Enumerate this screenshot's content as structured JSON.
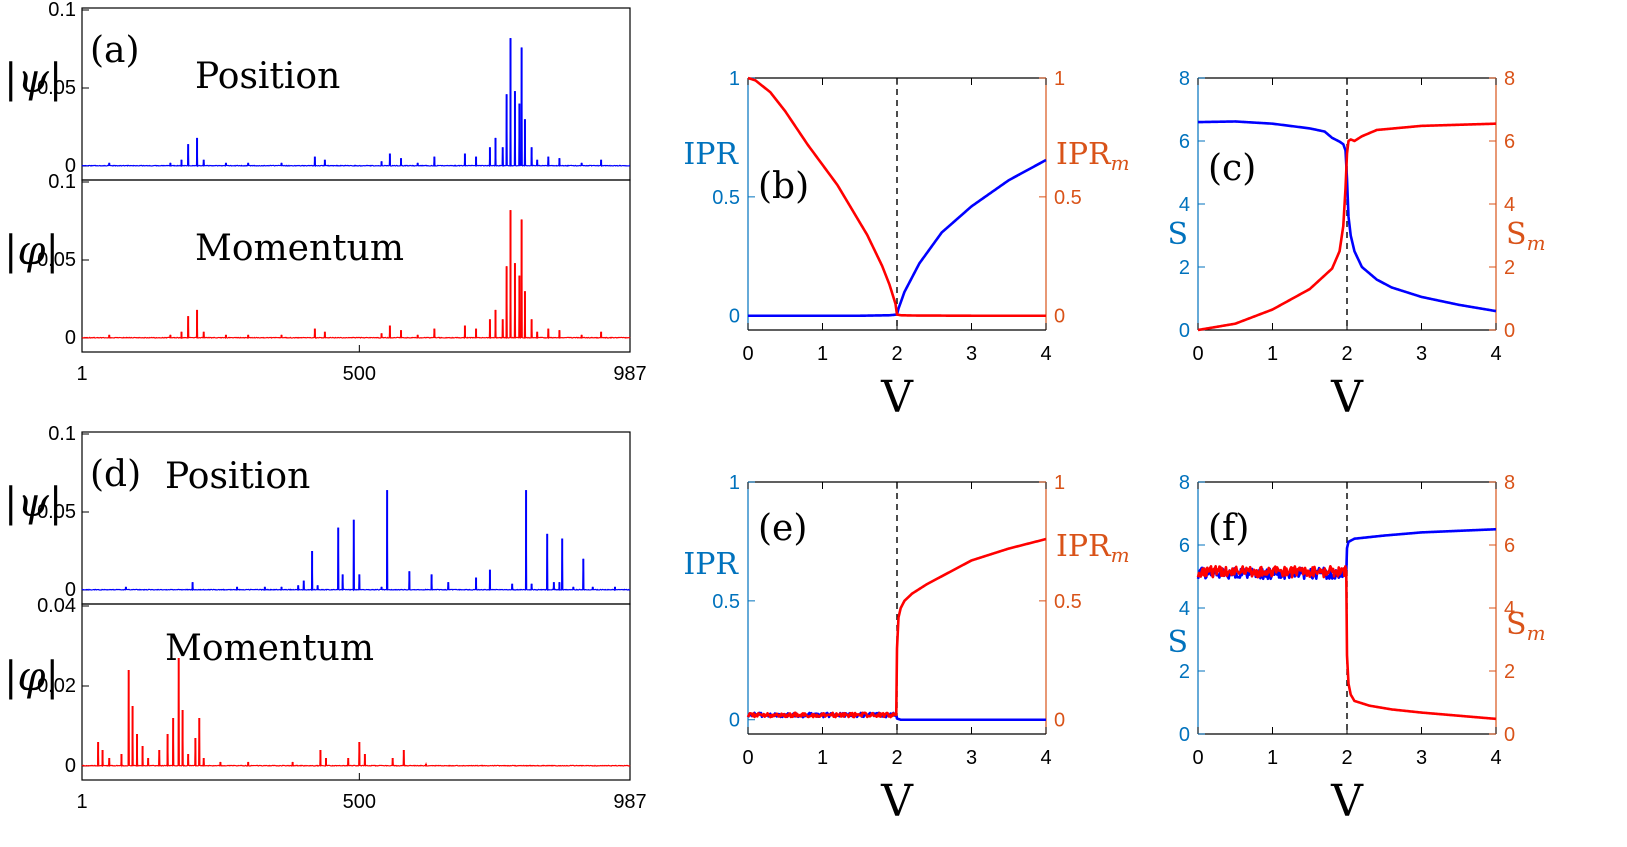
{
  "colors": {
    "blue": "#0000ff",
    "red": "#ff0000",
    "axis_blue": "#0072bd",
    "axis_orange": "#d95319",
    "black": "#000000"
  },
  "panels": {
    "a": {
      "label": "(a)",
      "top_title": "Position",
      "bottom_title": "Momentum",
      "top_ylabel": "|ψ|",
      "bottom_ylabel": "|φ|",
      "top_yticks": [
        "0",
        "0.05",
        "0.1"
      ],
      "bottom_yticks": [
        "0",
        "0.05",
        "0.1"
      ],
      "xticks": [
        "1",
        "500",
        "987"
      ]
    },
    "d": {
      "label": "(d)",
      "top_title": "Position",
      "bottom_title": "Momentum",
      "top_ylabel": "|ψ|",
      "bottom_ylabel": "|φ|",
      "top_yticks": [
        "0",
        "0.05",
        "0.1"
      ],
      "bottom_yticks": [
        "0",
        "0.02",
        "0.04"
      ],
      "xticks": [
        "1",
        "500",
        "987"
      ]
    },
    "b": {
      "label": "(b)",
      "left_label": "IPR",
      "right_label": "IPR",
      "right_sub": "m",
      "xlabel": "V",
      "xticks": [
        "0",
        "1",
        "2",
        "3",
        "4"
      ],
      "left_ticks": [
        "0",
        "0.5",
        "1"
      ],
      "right_ticks": [
        "0",
        "0.5",
        "1"
      ]
    },
    "c": {
      "label": "(c)",
      "left_label": "S",
      "right_label": "S",
      "right_sub": "m",
      "xlabel": "V",
      "xticks": [
        "0",
        "1",
        "2",
        "3",
        "4"
      ],
      "left_ticks": [
        "0",
        "2",
        "4",
        "6",
        "8"
      ],
      "right_ticks": [
        "0",
        "2",
        "4",
        "6",
        "8"
      ]
    },
    "e": {
      "label": "(e)",
      "left_label": "IPR",
      "right_label": "IPR",
      "right_sub": "m",
      "xlabel": "V",
      "xticks": [
        "0",
        "1",
        "2",
        "3",
        "4"
      ],
      "left_ticks": [
        "0",
        "0.5",
        "1"
      ],
      "right_ticks": [
        "0",
        "0.5",
        "1"
      ]
    },
    "f": {
      "label": "(f)",
      "left_label": "S",
      "right_label": "S",
      "right_sub": "m",
      "xlabel": "V",
      "xticks": [
        "0",
        "1",
        "2",
        "3",
        "4"
      ],
      "left_ticks": [
        "0",
        "2",
        "4",
        "6",
        "8"
      ],
      "right_ticks": [
        "0",
        "2",
        "4",
        "6",
        "8"
      ]
    }
  },
  "chart_data": [
    {
      "id": "a",
      "type": "line",
      "xlim": [
        1,
        987
      ],
      "series": [
        {
          "panel": "top",
          "ylim": [
            0,
            0.1
          ],
          "color": "#0000ff",
          "peaks": [
            [
              50,
              0.002
            ],
            [
              160,
              0.002
            ],
            [
              180,
              0.004
            ],
            [
              192,
              0.014
            ],
            [
              208,
              0.018
            ],
            [
              220,
              0.004
            ],
            [
              260,
              0.002
            ],
            [
              300,
              0.002
            ],
            [
              360,
              0.002
            ],
            [
              420,
              0.006
            ],
            [
              438,
              0.004
            ],
            [
              540,
              0.003
            ],
            [
              555,
              0.008
            ],
            [
              575,
              0.005
            ],
            [
              605,
              0.002
            ],
            [
              635,
              0.006
            ],
            [
              690,
              0.008
            ],
            [
              710,
              0.006
            ],
            [
              735,
              0.012
            ],
            [
              745,
              0.018
            ],
            [
              758,
              0.012
            ],
            [
              765,
              0.046
            ],
            [
              772,
              0.082
            ],
            [
              780,
              0.048
            ],
            [
              788,
              0.04
            ],
            [
              792,
              0.076
            ],
            [
              798,
              0.03
            ],
            [
              810,
              0.012
            ],
            [
              820,
              0.004
            ],
            [
              840,
              0.006
            ],
            [
              860,
              0.005
            ],
            [
              900,
              0.002
            ],
            [
              935,
              0.004
            ]
          ]
        },
        {
          "panel": "bottom",
          "ylim": [
            0,
            0.1
          ],
          "color": "#ff0000",
          "peaks": [
            [
              50,
              0.002
            ],
            [
              160,
              0.002
            ],
            [
              180,
              0.004
            ],
            [
              192,
              0.014
            ],
            [
              208,
              0.018
            ],
            [
              220,
              0.004
            ],
            [
              260,
              0.002
            ],
            [
              300,
              0.002
            ],
            [
              360,
              0.002
            ],
            [
              420,
              0.006
            ],
            [
              438,
              0.004
            ],
            [
              540,
              0.003
            ],
            [
              555,
              0.008
            ],
            [
              575,
              0.005
            ],
            [
              605,
              0.002
            ],
            [
              635,
              0.006
            ],
            [
              690,
              0.008
            ],
            [
              710,
              0.006
            ],
            [
              735,
              0.012
            ],
            [
              745,
              0.018
            ],
            [
              758,
              0.012
            ],
            [
              765,
              0.046
            ],
            [
              772,
              0.082
            ],
            [
              780,
              0.048
            ],
            [
              788,
              0.04
            ],
            [
              792,
              0.076
            ],
            [
              798,
              0.03
            ],
            [
              810,
              0.012
            ],
            [
              820,
              0.004
            ],
            [
              840,
              0.006
            ],
            [
              860,
              0.005
            ],
            [
              900,
              0.002
            ],
            [
              935,
              0.004
            ]
          ]
        }
      ]
    },
    {
      "id": "d",
      "type": "line",
      "xlim": [
        1,
        987
      ],
      "series": [
        {
          "panel": "top",
          "ylim": [
            0,
            0.1
          ],
          "color": "#0000ff",
          "peaks": [
            [
              80,
              0.002
            ],
            [
              200,
              0.005
            ],
            [
              280,
              0.002
            ],
            [
              330,
              0.002
            ],
            [
              360,
              0.002
            ],
            [
              390,
              0.003
            ],
            [
              400,
              0.006
            ],
            [
              415,
              0.025
            ],
            [
              425,
              0.003
            ],
            [
              462,
              0.04
            ],
            [
              470,
              0.01
            ],
            [
              490,
              0.045
            ],
            [
              500,
              0.01
            ],
            [
              540,
              0.002
            ],
            [
              550,
              0.064
            ],
            [
              590,
              0.012
            ],
            [
              630,
              0.01
            ],
            [
              660,
              0.005
            ],
            [
              710,
              0.008
            ],
            [
              735,
              0.013
            ],
            [
              775,
              0.004
            ],
            [
              800,
              0.064
            ],
            [
              810,
              0.004
            ],
            [
              838,
              0.036
            ],
            [
              850,
              0.005
            ],
            [
              860,
              0.005
            ],
            [
              865,
              0.033
            ],
            [
              885,
              0.002
            ],
            [
              903,
              0.02
            ],
            [
              920,
              0.002
            ],
            [
              960,
              0.002
            ]
          ]
        },
        {
          "panel": "bottom",
          "ylim": [
            0,
            0.04
          ],
          "color": "#ff0000",
          "peaks": [
            [
              30,
              0.006
            ],
            [
              38,
              0.004
            ],
            [
              50,
              0.002
            ],
            [
              72,
              0.003
            ],
            [
              85,
              0.024
            ],
            [
              92,
              0.015
            ],
            [
              100,
              0.008
            ],
            [
              110,
              0.005
            ],
            [
              120,
              0.002
            ],
            [
              140,
              0.004
            ],
            [
              155,
              0.008
            ],
            [
              165,
              0.012
            ],
            [
              175,
              0.027
            ],
            [
              182,
              0.014
            ],
            [
              192,
              0.003
            ],
            [
              205,
              0.007
            ],
            [
              212,
              0.012
            ],
            [
              220,
              0.002
            ],
            [
              250,
              0.001
            ],
            [
              300,
              0.001
            ],
            [
              380,
              0.001
            ],
            [
              430,
              0.004
            ],
            [
              440,
              0.002
            ],
            [
              480,
              0.002
            ],
            [
              500,
              0.006
            ],
            [
              510,
              0.003
            ],
            [
              560,
              0.002
            ],
            [
              580,
              0.004
            ],
            [
              620,
              0.0005
            ]
          ]
        }
      ]
    },
    {
      "id": "b",
      "type": "line",
      "xlim": [
        0,
        4
      ],
      "ylim": [
        -0.06,
        1
      ],
      "xlabel": "V",
      "series": [
        {
          "name": "IPR",
          "axis": "left",
          "color": "#0000ff",
          "x": [
            0,
            0.5,
            1,
            1.5,
            1.9,
            2.0,
            2.02,
            2.1,
            2.3,
            2.6,
            3.0,
            3.5,
            4.0
          ],
          "y": [
            0,
            0,
            0,
            0,
            0.002,
            0.005,
            0.03,
            0.1,
            0.22,
            0.35,
            0.46,
            0.57,
            0.655
          ]
        },
        {
          "name": "IPR_m",
          "axis": "right",
          "color": "#ff0000",
          "x": [
            0,
            0.1,
            0.3,
            0.5,
            0.8,
            1.2,
            1.6,
            1.8,
            1.9,
            1.98,
            2.0,
            2.05,
            2.2,
            3.0,
            4.0
          ],
          "y": [
            1,
            0.99,
            0.94,
            0.86,
            0.72,
            0.55,
            0.34,
            0.21,
            0.13,
            0.05,
            0.005,
            0.002,
            0.001,
            0,
            0
          ]
        }
      ]
    },
    {
      "id": "c",
      "type": "line",
      "xlim": [
        0,
        4
      ],
      "ylim": [
        0,
        8
      ],
      "xlabel": "V",
      "series": [
        {
          "name": "S",
          "axis": "left",
          "color": "#0000ff",
          "x": [
            0,
            0.5,
            1,
            1.5,
            1.7,
            1.8,
            1.9,
            1.95,
            1.98,
            2.0,
            2.02,
            2.05,
            2.1,
            2.2,
            2.4,
            2.6,
            3.0,
            3.5,
            4.0
          ],
          "y": [
            6.6,
            6.62,
            6.55,
            6.4,
            6.3,
            6.1,
            5.98,
            5.9,
            5.7,
            4.8,
            3.6,
            3.0,
            2.5,
            2.0,
            1.6,
            1.35,
            1.05,
            0.8,
            0.6
          ]
        },
        {
          "name": "S_m",
          "axis": "right",
          "color": "#ff0000",
          "x": [
            0,
            0.5,
            1,
            1.5,
            1.8,
            1.9,
            1.95,
            1.98,
            2.0,
            2.02,
            2.05,
            2.1,
            2.2,
            2.4,
            3.0,
            4.0
          ],
          "y": [
            0,
            0.2,
            0.65,
            1.3,
            1.95,
            2.5,
            3.3,
            4.5,
            5.6,
            6.0,
            6.05,
            6.0,
            6.15,
            6.35,
            6.48,
            6.55
          ]
        }
      ]
    },
    {
      "id": "e",
      "type": "line",
      "xlim": [
        0,
        4
      ],
      "ylim": [
        -0.06,
        1
      ],
      "xlabel": "V",
      "series": [
        {
          "name": "IPR",
          "axis": "left",
          "color": "#0000ff",
          "x": [
            0,
            1,
            1.99,
            2.0,
            2.05,
            3,
            4
          ],
          "y": [
            0.02,
            0.02,
            0.02,
            0.005,
            0,
            0,
            0
          ]
        },
        {
          "name": "IPR_m",
          "axis": "right",
          "color": "#ff0000",
          "x": [
            0,
            0.5,
            1,
            1.5,
            1.99,
            2.0,
            2.02,
            2.05,
            2.1,
            2.2,
            2.4,
            2.7,
            3.0,
            3.5,
            4.0
          ],
          "y": [
            0.02,
            0.02,
            0.02,
            0.02,
            0.02,
            0.3,
            0.43,
            0.47,
            0.5,
            0.53,
            0.57,
            0.62,
            0.67,
            0.72,
            0.76
          ]
        }
      ]
    },
    {
      "id": "f",
      "type": "line",
      "xlim": [
        0,
        4
      ],
      "ylim": [
        0,
        8
      ],
      "xlabel": "V",
      "series": [
        {
          "name": "S",
          "axis": "left",
          "color": "#0000ff",
          "x": [
            0,
            0.5,
            1,
            1.5,
            1.99,
            2.0,
            2.02,
            2.1,
            2.5,
            3.0,
            3.5,
            4.0
          ],
          "y": [
            5.1,
            5.1,
            5.1,
            5.1,
            5.1,
            5.9,
            6.1,
            6.2,
            6.3,
            6.4,
            6.45,
            6.5
          ]
        },
        {
          "name": "S_m",
          "axis": "right",
          "color": "#ff0000",
          "x": [
            0,
            0.5,
            1,
            1.5,
            1.99,
            2.0,
            2.02,
            2.05,
            2.1,
            2.3,
            2.6,
            3.0,
            3.5,
            4.0
          ],
          "y": [
            5.15,
            5.15,
            5.15,
            5.15,
            5.15,
            2.5,
            1.6,
            1.25,
            1.05,
            0.9,
            0.78,
            0.68,
            0.58,
            0.48
          ]
        }
      ]
    }
  ]
}
